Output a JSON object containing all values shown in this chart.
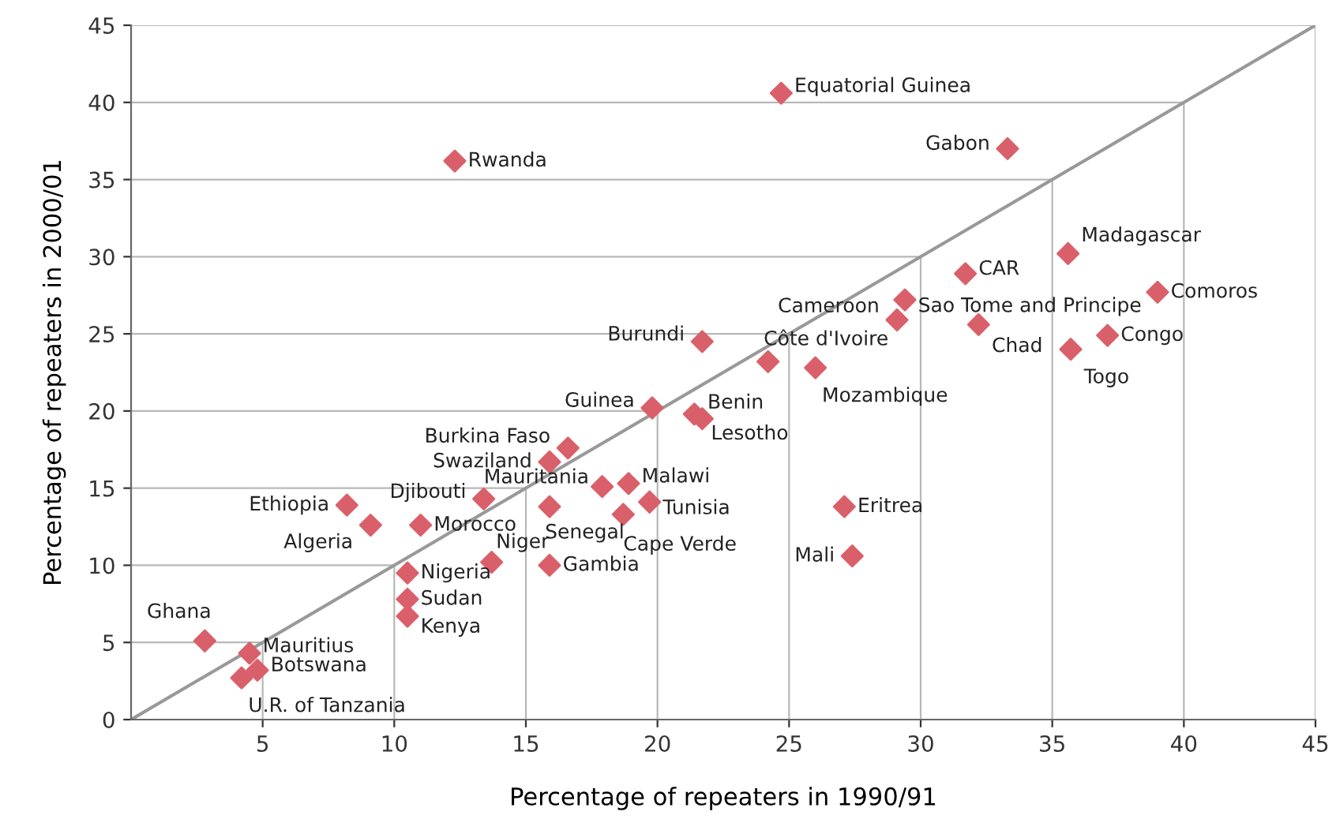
{
  "chart_data": [
    {
      "type": "scatter",
      "xlabel": "Percentage of repeaters in 1990/91",
      "ylabel": "Percentage of repeaters in 2000/01",
      "xlim": [
        0,
        45
      ],
      "ylim": [
        0,
        45
      ],
      "xticks": [
        5,
        10,
        15,
        20,
        25,
        30,
        35,
        40,
        45
      ],
      "yticks": [
        0,
        5,
        10,
        15,
        20,
        25,
        30,
        35,
        40,
        45
      ],
      "grid": true,
      "series": [
        {
          "marker": "diamond",
          "color": "#d9606a",
          "x": [
            24.7,
            33.3,
            12.3,
            35.6,
            31.7,
            39.0,
            29.4,
            29.1,
            32.2,
            37.1,
            35.7,
            21.7,
            24.2,
            26.0,
            19.8,
            21.4,
            21.7,
            16.6,
            15.9,
            18.9,
            17.9,
            13.4,
            8.2,
            15.9,
            19.7,
            18.7,
            27.1,
            9.1,
            11.0,
            27.4,
            13.7,
            15.9,
            10.5,
            10.5,
            10.5,
            2.8,
            4.5,
            4.8,
            4.2
          ],
          "values": [
            40.6,
            37.0,
            36.2,
            30.2,
            28.9,
            27.7,
            27.2,
            25.9,
            25.6,
            24.9,
            24.0,
            24.5,
            23.2,
            22.8,
            20.2,
            19.8,
            19.5,
            17.6,
            16.7,
            15.3,
            15.1,
            14.3,
            13.9,
            13.8,
            14.1,
            13.3,
            13.8,
            12.6,
            12.6,
            10.6,
            10.2,
            10.0,
            9.5,
            7.8,
            6.7,
            5.1,
            4.3,
            3.2,
            2.7
          ]
        },
        {
          "type": "line",
          "color": "#999999",
          "x": [
            0,
            45
          ],
          "values": [
            0,
            45
          ]
        }
      ],
      "annotations": [
        {
          "text": "Equatorial Guinea",
          "x": 24.7,
          "y": 40.6
        },
        {
          "text": "Gabon",
          "x": 33.3,
          "y": 37.0
        },
        {
          "text": "Rwanda",
          "x": 12.3,
          "y": 36.2
        },
        {
          "text": "Madagascar",
          "x": 35.6,
          "y": 30.2
        },
        {
          "text": "CAR",
          "x": 31.7,
          "y": 28.9
        },
        {
          "text": "Comoros",
          "x": 39.0,
          "y": 27.7
        },
        {
          "text": "Sao Tome and Principe",
          "x": 29.4,
          "y": 27.2
        },
        {
          "text": "Cameroon",
          "x": 29.1,
          "y": 25.9
        },
        {
          "text": "Chad",
          "x": 32.2,
          "y": 25.6
        },
        {
          "text": "Congo",
          "x": 37.1,
          "y": 24.9
        },
        {
          "text": "Togo",
          "x": 35.7,
          "y": 24.0
        },
        {
          "text": "Burundi",
          "x": 21.7,
          "y": 24.5
        },
        {
          "text": "Côte d'Ivoire",
          "x": 24.2,
          "y": 23.2
        },
        {
          "text": "Mozambique",
          "x": 26.0,
          "y": 22.8
        },
        {
          "text": "Guinea",
          "x": 19.8,
          "y": 20.2
        },
        {
          "text": "Benin",
          "x": 21.4,
          "y": 19.8
        },
        {
          "text": "Lesotho",
          "x": 21.7,
          "y": 19.5
        },
        {
          "text": "Burkina Faso",
          "x": 16.6,
          "y": 17.6
        },
        {
          "text": "Swaziland",
          "x": 15.9,
          "y": 16.7
        },
        {
          "text": "Malawi",
          "x": 18.9,
          "y": 15.3
        },
        {
          "text": "Mauritania",
          "x": 17.9,
          "y": 15.1
        },
        {
          "text": "Djibouti",
          "x": 13.4,
          "y": 14.3
        },
        {
          "text": "Ethiopia",
          "x": 8.2,
          "y": 13.9
        },
        {
          "text": "Senegal",
          "x": 15.9,
          "y": 13.8
        },
        {
          "text": "Tunisia",
          "x": 19.7,
          "y": 14.1
        },
        {
          "text": "Cape Verde",
          "x": 18.7,
          "y": 13.3
        },
        {
          "text": "Eritrea",
          "x": 27.1,
          "y": 13.8
        },
        {
          "text": "Algeria",
          "x": 9.1,
          "y": 12.6
        },
        {
          "text": "Morocco",
          "x": 11.0,
          "y": 12.6
        },
        {
          "text": "Mali",
          "x": 27.4,
          "y": 10.6
        },
        {
          "text": "Niger",
          "x": 13.7,
          "y": 10.2
        },
        {
          "text": "Gambia",
          "x": 15.9,
          "y": 10.0
        },
        {
          "text": "Nigeria",
          "x": 10.5,
          "y": 9.5
        },
        {
          "text": "Sudan",
          "x": 10.5,
          "y": 7.8
        },
        {
          "text": "Kenya",
          "x": 10.5,
          "y": 6.7
        },
        {
          "text": "Ghana",
          "x": 2.8,
          "y": 5.1
        },
        {
          "text": "Mauritius",
          "x": 4.5,
          "y": 4.3
        },
        {
          "text": "Botswana",
          "x": 4.8,
          "y": 3.2
        },
        {
          "text": "U.R. of Tanzania",
          "x": 4.2,
          "y": 2.7
        }
      ]
    }
  ]
}
